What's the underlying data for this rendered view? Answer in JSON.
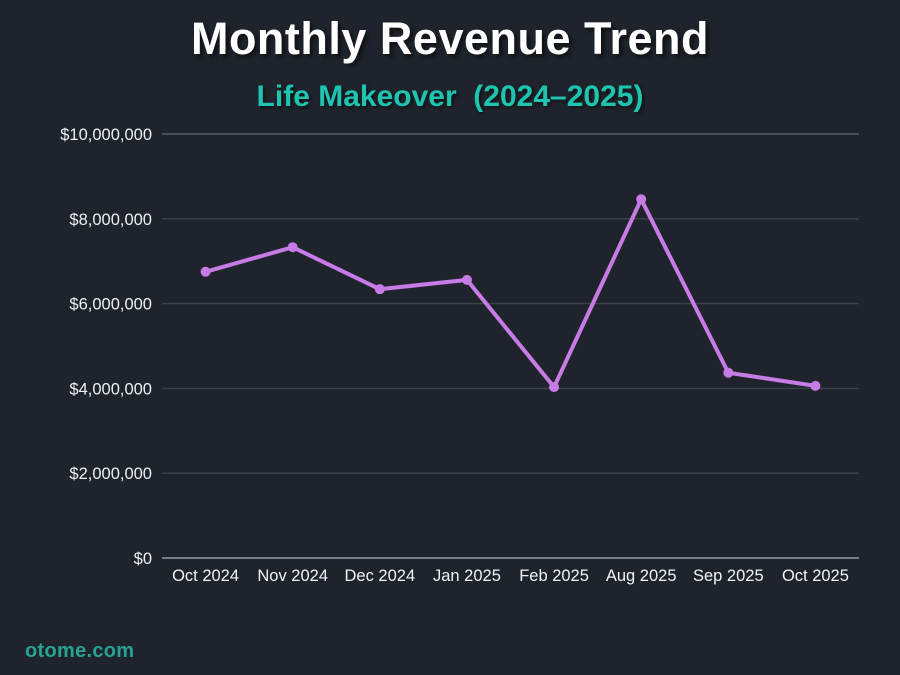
{
  "chart_data": {
    "type": "line",
    "title": "Monthly Revenue Trend",
    "subtitle": "Life Makeover  (2024–2025)",
    "categories": [
      "Oct 2024",
      "Nov 2024",
      "Dec 2024",
      "Jan 2025",
      "Feb 2025",
      "Aug 2025",
      "Sep 2025",
      "Oct 2025"
    ],
    "series": [
      {
        "name": "Monthly Revenue",
        "values": [
          6750000,
          7330000,
          6340000,
          6560000,
          4030000,
          8460000,
          4370000,
          4060000
        ]
      }
    ],
    "xlabel": "",
    "ylabel": "",
    "ylim": [
      0,
      10000000
    ],
    "ytick_step": 2000000,
    "ytick_labels": [
      "$0",
      "$2,000,000",
      "$4,000,000",
      "$6,000,000",
      "$8,000,000",
      "$10,000,000"
    ],
    "grid": "horizontal",
    "legend": "none",
    "marker": "circle"
  },
  "page": {
    "footer": "otome.com"
  },
  "colors": {
    "background": "#1f242c",
    "title_text": "#ffffff",
    "subtitle_text": "#1ec4b0",
    "line": "#c77be4",
    "marker": "#c77be4",
    "grid": "#3c424c",
    "grid_top": "#575d66",
    "axis_bottom": "#777c84",
    "ytick_text": "#eef0f3",
    "xtick_text": "#f2f3f5",
    "footer_text": "#27a391"
  }
}
